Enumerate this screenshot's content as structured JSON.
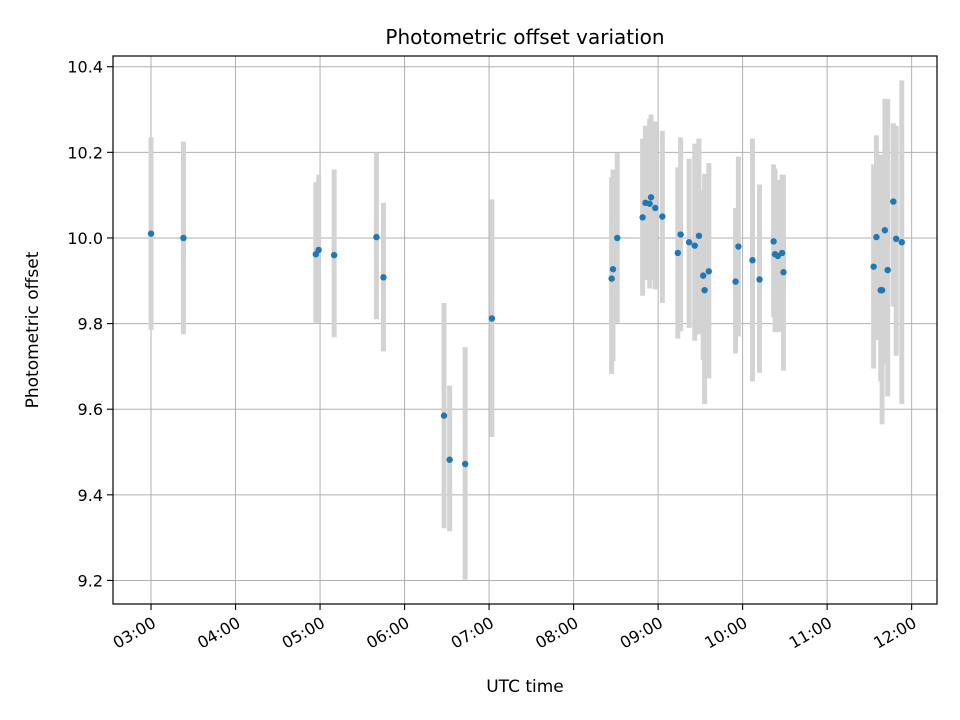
{
  "chart_data": {
    "type": "scatter",
    "title": "Photometric offset variation",
    "xlabel": "UTC time",
    "ylabel": "Photometric offset",
    "xlim": [
      "02:33",
      "12:18"
    ],
    "ylim": [
      9.145,
      10.425
    ],
    "xticks": [
      "03:00",
      "04:00",
      "05:00",
      "06:00",
      "07:00",
      "08:00",
      "09:00",
      "10:00",
      "11:00",
      "12:00"
    ],
    "yticks": [
      9.2,
      9.4,
      9.6,
      9.8,
      10.0,
      10.2,
      10.4
    ],
    "ytick_labels": [
      "9.2",
      "9.4",
      "9.6",
      "9.8",
      "10.0",
      "10.2",
      "10.4"
    ],
    "grid": true,
    "colors": {
      "point": "#1f77b4",
      "errorbar": "#d3d3d3"
    },
    "series": [
      {
        "points": [
          {
            "x": "03:00",
            "y": 10.01,
            "lo": 9.785,
            "hi": 10.235
          },
          {
            "x": "03:23",
            "y": 10.0,
            "lo": 9.775,
            "hi": 10.225
          },
          {
            "x": "04:57",
            "y": 9.962,
            "lo": 9.802,
            "hi": 10.13
          },
          {
            "x": "04:59",
            "y": 9.972,
            "lo": 9.802,
            "hi": 10.148
          },
          {
            "x": "05:10",
            "y": 9.96,
            "lo": 9.768,
            "hi": 10.16
          },
          {
            "x": "05:40",
            "y": 10.002,
            "lo": 9.81,
            "hi": 10.2
          },
          {
            "x": "05:45",
            "y": 9.908,
            "lo": 9.735,
            "hi": 10.082
          },
          {
            "x": "06:28",
            "y": 9.585,
            "lo": 9.322,
            "hi": 9.848
          },
          {
            "x": "06:32",
            "y": 9.482,
            "lo": 9.315,
            "hi": 9.655
          },
          {
            "x": "06:43",
            "y": 9.472,
            "lo": 9.202,
            "hi": 9.745
          },
          {
            "x": "07:02",
            "y": 9.812,
            "lo": 9.535,
            "hi": 10.09
          },
          {
            "x": "08:27",
            "y": 9.905,
            "lo": 9.682,
            "hi": 10.142
          },
          {
            "x": "08:28",
            "y": 9.927,
            "lo": 9.712,
            "hi": 10.16
          },
          {
            "x": "08:31",
            "y": 10.0,
            "lo": 9.802,
            "hi": 10.198
          },
          {
            "x": "08:49",
            "y": 10.048,
            "lo": 9.865,
            "hi": 10.232
          },
          {
            "x": "08:51",
            "y": 10.082,
            "lo": 9.902,
            "hi": 10.262
          },
          {
            "x": "08:54",
            "y": 10.08,
            "lo": 9.882,
            "hi": 10.278
          },
          {
            "x": "08:55",
            "y": 10.095,
            "lo": 9.902,
            "hi": 10.288
          },
          {
            "x": "08:58",
            "y": 10.07,
            "lo": 9.88,
            "hi": 10.272
          },
          {
            "x": "09:03",
            "y": 10.05,
            "lo": 9.848,
            "hi": 10.25
          },
          {
            "x": "09:14",
            "y": 9.965,
            "lo": 9.765,
            "hi": 10.165
          },
          {
            "x": "09:16",
            "y": 10.008,
            "lo": 9.782,
            "hi": 10.235
          },
          {
            "x": "09:22",
            "y": 9.99,
            "lo": 9.79,
            "hi": 10.185
          },
          {
            "x": "09:26",
            "y": 9.982,
            "lo": 9.76,
            "hi": 10.22
          },
          {
            "x": "09:29",
            "y": 10.005,
            "lo": 9.775,
            "hi": 10.232
          },
          {
            "x": "09:32",
            "y": 9.912,
            "lo": 9.715,
            "hi": 10.11
          },
          {
            "x": "09:33",
            "y": 9.878,
            "lo": 9.612,
            "hi": 10.15
          },
          {
            "x": "09:36",
            "y": 9.922,
            "lo": 9.672,
            "hi": 10.175
          },
          {
            "x": "09:55",
            "y": 9.898,
            "lo": 9.73,
            "hi": 10.07
          },
          {
            "x": "09:57",
            "y": 9.98,
            "lo": 9.77,
            "hi": 10.19
          },
          {
            "x": "10:07",
            "y": 9.948,
            "lo": 9.665,
            "hi": 10.232
          },
          {
            "x": "10:12",
            "y": 9.903,
            "lo": 9.685,
            "hi": 10.125
          },
          {
            "x": "10:22",
            "y": 9.992,
            "lo": 9.815,
            "hi": 10.172
          },
          {
            "x": "10:23",
            "y": 9.962,
            "lo": 9.78,
            "hi": 10.162
          },
          {
            "x": "10:25",
            "y": 9.958,
            "lo": 9.78,
            "hi": 10.135
          },
          {
            "x": "10:28",
            "y": 9.965,
            "lo": 9.782,
            "hi": 10.148
          },
          {
            "x": "10:29",
            "y": 9.92,
            "lo": 9.69,
            "hi": 10.148
          },
          {
            "x": "11:33",
            "y": 9.933,
            "lo": 9.695,
            "hi": 10.172
          },
          {
            "x": "11:35",
            "y": 10.002,
            "lo": 9.762,
            "hi": 10.24
          },
          {
            "x": "11:38",
            "y": 9.878,
            "lo": 9.665,
            "hi": 10.195
          },
          {
            "x": "11:39",
            "y": 9.878,
            "lo": 9.565,
            "hi": 10.195
          },
          {
            "x": "11:41",
            "y": 10.018,
            "lo": 9.705,
            "hi": 10.325
          },
          {
            "x": "11:43",
            "y": 9.925,
            "lo": 9.63,
            "hi": 10.325
          },
          {
            "x": "11:47",
            "y": 10.085,
            "lo": 9.84,
            "hi": 10.268
          },
          {
            "x": "11:49",
            "y": 9.998,
            "lo": 9.725,
            "hi": 10.262
          },
          {
            "x": "11:53",
            "y": 9.99,
            "lo": 9.612,
            "hi": 10.368
          }
        ]
      }
    ]
  }
}
